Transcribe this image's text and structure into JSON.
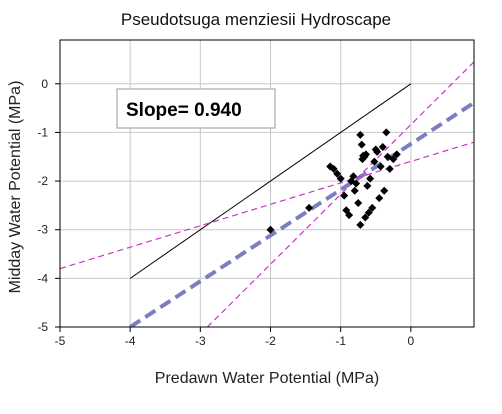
{
  "chart_data": {
    "type": "scatter",
    "title": "Pseudotsuga menziesii Hydroscape",
    "xlabel": "Predawn Water Potential (MPa)",
    "ylabel": "Midday Water Potential (MPa)",
    "xlim": [
      -5,
      0.9
    ],
    "ylim": [
      -5,
      0.9
    ],
    "xticks": [
      -5,
      -4,
      -3,
      -2,
      -1,
      0
    ],
    "yticks": [
      0,
      -1,
      -2,
      -3,
      -4,
      -5
    ],
    "grid": true,
    "annotation": "Slope= 0.940",
    "points": [
      {
        "x": -2.0,
        "y": -3.0
      },
      {
        "x": -1.45,
        "y": -2.55
      },
      {
        "x": -1.15,
        "y": -1.7
      },
      {
        "x": -1.1,
        "y": -1.75
      },
      {
        "x": -1.05,
        "y": -1.85
      },
      {
        "x": -0.95,
        "y": -2.3
      },
      {
        "x": -0.92,
        "y": -2.6
      },
      {
        "x": -0.88,
        "y": -2.7
      },
      {
        "x": -0.85,
        "y": -2.0
      },
      {
        "x": -0.82,
        "y": -1.9
      },
      {
        "x": -0.8,
        "y": -2.2
      },
      {
        "x": -0.78,
        "y": -2.05
      },
      {
        "x": -0.75,
        "y": -2.45
      },
      {
        "x": -0.72,
        "y": -1.05
      },
      {
        "x": -0.7,
        "y": -1.25
      },
      {
        "x": -0.69,
        "y": -1.55
      },
      {
        "x": -0.68,
        "y": -1.48
      },
      {
        "x": -0.66,
        "y": -1.5
      },
      {
        "x": -0.64,
        "y": -1.45
      },
      {
        "x": -0.62,
        "y": -2.1
      },
      {
        "x": -0.6,
        "y": -2.65
      },
      {
        "x": -0.58,
        "y": -1.95
      },
      {
        "x": -0.55,
        "y": -2.55
      },
      {
        "x": -0.52,
        "y": -1.6
      },
      {
        "x": -0.5,
        "y": -1.35
      },
      {
        "x": -0.48,
        "y": -1.4
      },
      {
        "x": -0.45,
        "y": -2.35
      },
      {
        "x": -0.43,
        "y": -1.7
      },
      {
        "x": -0.4,
        "y": -1.3
      },
      {
        "x": -0.38,
        "y": -2.2
      },
      {
        "x": -0.35,
        "y": -1.0
      },
      {
        "x": -0.33,
        "y": -1.5
      },
      {
        "x": -0.3,
        "y": -1.75
      },
      {
        "x": -0.25,
        "y": -1.55
      },
      {
        "x": -0.2,
        "y": -1.45
      },
      {
        "x": -0.72,
        "y": -2.9
      },
      {
        "x": -0.65,
        "y": -2.75
      },
      {
        "x": -1.0,
        "y": -1.95
      }
    ],
    "lines": [
      {
        "role": "one-to-one",
        "x": [
          -4,
          0
        ],
        "y": [
          -4,
          0
        ],
        "color": "#000000",
        "dash": "solid",
        "width": 1
      },
      {
        "role": "regression",
        "x": [
          -4.0,
          0.9
        ],
        "y": [
          -5.0,
          -0.39
        ],
        "color": "#7b7fbf",
        "dash": "dashed",
        "width": 4
      },
      {
        "role": "confidence-upper",
        "x": [
          -5.0,
          0.9
        ],
        "y": [
          -3.8,
          -1.2
        ],
        "color": "#cc33cc",
        "dash": "dashed",
        "width": 1.2
      },
      {
        "role": "confidence-lower",
        "x": [
          -2.9,
          0.9
        ],
        "y": [
          -5.0,
          0.45
        ],
        "color": "#cc33cc",
        "dash": "dashed",
        "width": 1.2
      }
    ]
  }
}
